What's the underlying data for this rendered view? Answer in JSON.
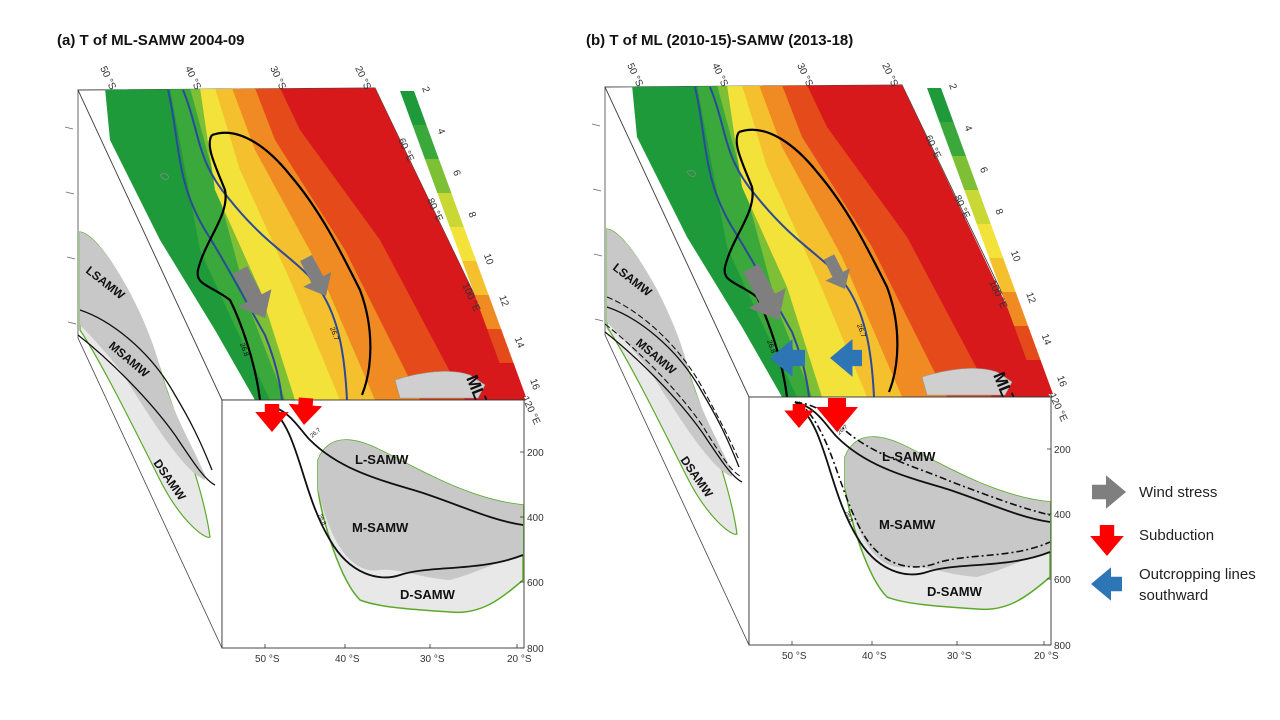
{
  "panels": [
    {
      "id": "a",
      "title": "(a) T of ML-SAMW 2004-09",
      "map_label": "MLT",
      "top_lat_labels": [
        "50 °S",
        "40 °S",
        "30 °S",
        "20 °S"
      ],
      "side_lon_labels": [
        "60 °E",
        "80 °E",
        "100 °E",
        "120 °E"
      ],
      "colorbar_ticks": [
        "2",
        "4",
        "6",
        "8",
        "10",
        "12",
        "14",
        "16"
      ],
      "contour_labels": [
        "26.7",
        "26.8"
      ],
      "section_lat_labels": [
        "50 °S",
        "40 °S",
        "30 °S",
        "20 °S"
      ],
      "depth_ticks": [
        "200",
        "400",
        "600",
        "800"
      ],
      "section_layers": [
        "L-SAMW",
        "M-SAMW",
        "D-SAMW"
      ],
      "side_layers": [
        "LSAMW",
        "MSAMW",
        "DSAMW"
      ]
    },
    {
      "id": "b",
      "title": "(b) T of ML (2010-15)-SAMW (2013-18)",
      "map_label": "MLT",
      "top_lat_labels": [
        "50 °S",
        "40 °S",
        "30 °S",
        "20 °S"
      ],
      "side_lon_labels": [
        "60 °E",
        "80 °E",
        "100 °E",
        "120 °E"
      ],
      "colorbar_ticks": [
        "2",
        "4",
        "6",
        "8",
        "10",
        "12",
        "14",
        "16"
      ],
      "contour_labels": [
        "26.7",
        "26.8"
      ],
      "section_lat_labels": [
        "50 °S",
        "40 °S",
        "30 °S",
        "20 °S"
      ],
      "depth_ticks": [
        "200",
        "400",
        "600",
        "800"
      ],
      "section_layers": [
        "L-SAMW",
        "M-SAMW",
        "D-SAMW"
      ],
      "side_layers": [
        "LSAMW",
        "MSAMW",
        "DSAMW"
      ]
    }
  ],
  "legend": [
    {
      "label": "Wind stress",
      "color": "#7f7f7f",
      "icon": "gray-arrow-icon"
    },
    {
      "label": "Subduction",
      "color": "#ff0000",
      "icon": "red-arrow-icon"
    },
    {
      "label": "Outcropping lines southward",
      "color": "#2e75b6",
      "icon": "blue-arrow-icon"
    }
  ],
  "colors": {
    "colormap": [
      "#1e9a3a",
      "#3aa83a",
      "#7dbf35",
      "#c9d835",
      "#f2e23a",
      "#f5c02e",
      "#f08a22",
      "#e54b1a",
      "#d7191c"
    ],
    "dense_layer_fill": "#c8c8c8",
    "light_layer_fill": "#e8e8e8",
    "outline_green": "#5aaa28",
    "contour_blue": "#2b4a9a",
    "mlt_label": "#ff0000"
  }
}
